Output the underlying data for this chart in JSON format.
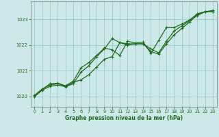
{
  "background_color": "#cce8e8",
  "plot_bg_color": "#cce8e8",
  "grid_color": "#99cccc",
  "line_color": "#1a6b1a",
  "xlabel": "Graphe pression niveau de la mer (hPa)",
  "xlim": [
    -0.5,
    23.5
  ],
  "ylim": [
    1019.6,
    1023.7
  ],
  "yticks": [
    1020,
    1021,
    1022,
    1023
  ],
  "xticks": [
    0,
    1,
    2,
    3,
    4,
    5,
    6,
    7,
    8,
    9,
    10,
    11,
    12,
    13,
    14,
    15,
    16,
    17,
    18,
    19,
    20,
    21,
    22,
    23
  ],
  "line1_x": [
    0,
    1,
    2,
    3,
    4,
    5,
    6,
    7,
    8,
    9,
    10,
    11,
    12,
    13,
    14,
    15,
    16,
    17,
    18,
    19,
    20,
    21,
    22,
    23
  ],
  "line1_y": [
    1020.05,
    1020.3,
    1020.45,
    1020.5,
    1020.4,
    1020.55,
    1020.65,
    1020.85,
    1021.15,
    1021.45,
    1021.55,
    1022.1,
    1022.0,
    1022.05,
    1022.05,
    1021.85,
    1021.7,
    1022.15,
    1022.55,
    1022.75,
    1022.95,
    1023.15,
    1023.3,
    1023.3
  ],
  "line2_x": [
    0,
    1,
    2,
    3,
    4,
    5,
    6,
    7,
    8,
    9,
    10,
    11,
    12,
    13,
    14,
    15,
    16,
    17,
    18,
    19,
    20,
    21,
    22,
    23
  ],
  "line2_y": [
    1020.0,
    1020.25,
    1020.4,
    1020.45,
    1020.38,
    1020.5,
    1020.95,
    1021.2,
    1021.55,
    1021.85,
    1022.25,
    1022.1,
    1022.05,
    1022.05,
    1022.05,
    1021.75,
    1021.65,
    1022.05,
    1022.4,
    1022.65,
    1022.9,
    1023.2,
    1023.3,
    1023.3
  ],
  "line3_x": [
    0,
    1,
    2,
    3,
    4,
    5,
    6,
    7,
    8,
    9,
    10,
    11,
    12,
    13,
    14,
    15,
    16,
    17,
    18,
    19,
    20,
    21,
    22,
    23
  ],
  "line3_y": [
    1020.0,
    1020.28,
    1020.5,
    1020.52,
    1020.42,
    1020.6,
    1021.12,
    1021.32,
    1021.6,
    1021.88,
    1021.82,
    1021.6,
    1022.15,
    1022.08,
    1022.12,
    1021.68,
    1022.18,
    1022.68,
    1022.68,
    1022.82,
    1022.98,
    1023.22,
    1023.3,
    1023.35
  ],
  "label_fontsize": 5.5,
  "tick_fontsize": 4.8
}
